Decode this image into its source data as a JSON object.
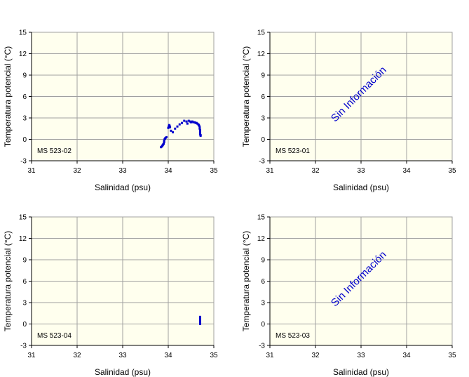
{
  "chart_data": [
    {
      "type": "scatter",
      "station": "MS 523-02",
      "xlabel": "Salinidad (psu)",
      "ylabel": "Temperatura potencial (°C)",
      "xlim": [
        31,
        35
      ],
      "ylim": [
        -3,
        15
      ],
      "xticks": [
        "31",
        "32",
        "33",
        "34",
        "35"
      ],
      "yticks": [
        "-3",
        "0",
        "3",
        "6",
        "9",
        "12",
        "15"
      ],
      "grid": true,
      "no_data_text": "",
      "series": [
        {
          "color": "#0000cc",
          "points": [
            [
              33.84,
              -1.1
            ],
            [
              33.86,
              -1.0
            ],
            [
              33.87,
              -0.9
            ],
            [
              33.88,
              -0.8
            ],
            [
              33.89,
              -0.7
            ],
            [
              33.9,
              -0.6
            ],
            [
              33.91,
              -0.4
            ],
            [
              33.91,
              -0.2
            ],
            [
              33.92,
              0.0
            ],
            [
              33.93,
              0.1
            ],
            [
              33.94,
              0.2
            ],
            [
              33.96,
              0.3
            ],
            [
              34.0,
              1.6
            ],
            [
              34.01,
              1.8
            ],
            [
              34.02,
              2.0
            ],
            [
              34.03,
              1.9
            ],
            [
              34.04,
              1.7
            ],
            [
              34.06,
              1.2
            ],
            [
              34.1,
              1.0
            ],
            [
              34.15,
              1.5
            ],
            [
              34.2,
              1.8
            ],
            [
              34.25,
              2.1
            ],
            [
              34.3,
              2.3
            ],
            [
              34.35,
              2.6
            ],
            [
              34.4,
              2.5
            ],
            [
              34.42,
              2.2
            ],
            [
              34.45,
              2.6
            ],
            [
              34.48,
              2.5
            ],
            [
              34.5,
              2.4
            ],
            [
              34.53,
              2.5
            ],
            [
              34.55,
              2.4
            ],
            [
              34.58,
              2.4
            ],
            [
              34.6,
              2.3
            ],
            [
              34.62,
              2.3
            ],
            [
              34.64,
              2.2
            ],
            [
              34.66,
              2.1
            ],
            [
              34.67,
              2.0
            ],
            [
              34.68,
              1.9
            ],
            [
              34.69,
              1.7
            ],
            [
              34.69,
              1.5
            ],
            [
              34.7,
              1.3
            ],
            [
              34.7,
              1.1
            ],
            [
              34.7,
              0.9
            ],
            [
              34.7,
              0.7
            ],
            [
              34.71,
              0.6
            ],
            [
              34.71,
              0.5
            ]
          ]
        }
      ]
    },
    {
      "type": "scatter",
      "station": "MS 523-01",
      "xlabel": "Salinidad (psu)",
      "ylabel": "Temperatura potencial (°C)",
      "xlim": [
        31,
        35
      ],
      "ylim": [
        -3,
        15
      ],
      "xticks": [
        "31",
        "32",
        "33",
        "34",
        "35"
      ],
      "yticks": [
        "-3",
        "0",
        "3",
        "6",
        "9",
        "12",
        "15"
      ],
      "grid": true,
      "no_data_text": "Sin Información",
      "series": []
    },
    {
      "type": "scatter",
      "station": "MS 523-04",
      "xlabel": "Salinidad (psu)",
      "ylabel": "Temperatura potencial (°C)",
      "xlim": [
        31,
        35
      ],
      "ylim": [
        -3,
        15
      ],
      "xticks": [
        "31",
        "32",
        "33",
        "34",
        "35"
      ],
      "yticks": [
        "-3",
        "0",
        "3",
        "6",
        "9",
        "12",
        "15"
      ],
      "grid": true,
      "no_data_text": "",
      "series": [
        {
          "color": "#0000cc",
          "points": [
            [
              34.7,
              0.0
            ],
            [
              34.7,
              0.15
            ],
            [
              34.7,
              0.3
            ],
            [
              34.7,
              0.45
            ],
            [
              34.7,
              0.6
            ],
            [
              34.7,
              0.75
            ],
            [
              34.7,
              0.9
            ],
            [
              34.7,
              1.0
            ]
          ]
        }
      ]
    },
    {
      "type": "scatter",
      "station": "MS 523-03",
      "xlabel": "Salinidad (psu)",
      "ylabel": "Temperatura potencial (°C)",
      "xlim": [
        31,
        35
      ],
      "ylim": [
        -3,
        15
      ],
      "xticks": [
        "31",
        "32",
        "33",
        "34",
        "35"
      ],
      "yticks": [
        "-3",
        "0",
        "3",
        "6",
        "9",
        "12",
        "15"
      ],
      "grid": true,
      "no_data_text": "Sin Información",
      "series": []
    }
  ],
  "colors": {
    "plot_background": "#ffffee",
    "grid": "#a0a0a0",
    "axis": "#000000",
    "no_data_text": "#0000cc"
  }
}
